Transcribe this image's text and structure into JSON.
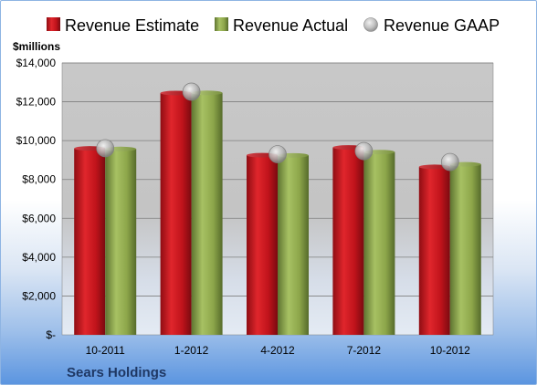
{
  "chart_data": {
    "type": "bar",
    "units_label": "$millions",
    "footer_label": "Sears Holdings",
    "categories": [
      "10-2011",
      "1-2012",
      "4-2012",
      "7-2012",
      "10-2012"
    ],
    "y_ticks": [
      "$-",
      "$2,000",
      "$4,000",
      "$6,000",
      "$8,000",
      "$10,000",
      "$12,000",
      "$14,000"
    ],
    "ylim": [
      0,
      14000
    ],
    "grid": true,
    "legend_position": "top",
    "series": [
      {
        "name": "Revenue Estimate",
        "kind": "bar",
        "color": "#c0131b",
        "values": [
          9600,
          12450,
          9250,
          9650,
          8650
        ]
      },
      {
        "name": "Revenue Actual",
        "kind": "bar",
        "color": "#8da64a",
        "values": [
          9570,
          12460,
          9240,
          9410,
          8780
        ]
      },
      {
        "name": "Revenue GAAP",
        "kind": "marker",
        "color": "#a6a6a6",
        "values": [
          9610,
          12520,
          9300,
          9460,
          8900
        ]
      }
    ]
  }
}
